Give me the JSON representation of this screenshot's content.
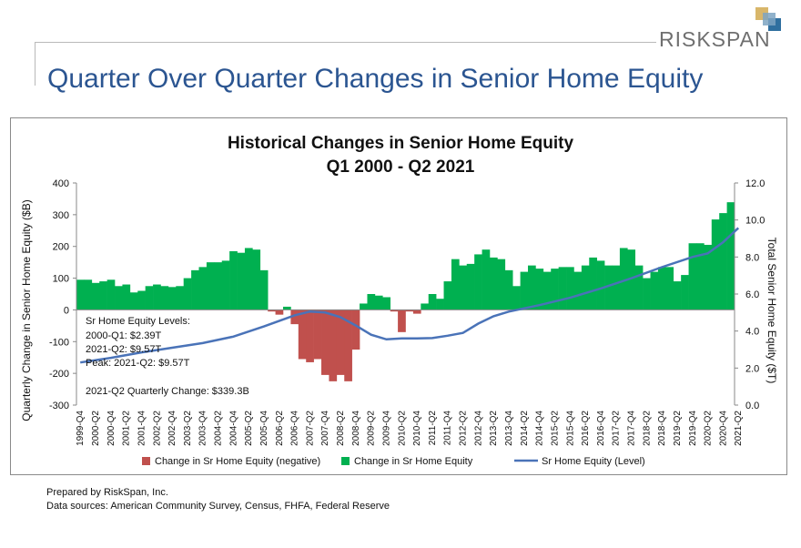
{
  "header": {
    "brand": "RISKSPAN",
    "page_title": "Quarter Over Quarter Changes in Senior Home Equity",
    "logo_colors": [
      "#d8b66a",
      "#2f6f9f",
      "#7ea4c2"
    ]
  },
  "chart_data": {
    "type": "bar+line",
    "title": "Historical Changes in Senior Home Equity",
    "subtitle": "Q1 2000 - Q2 2021",
    "ylabel": "Quarterly Change in Senior Home Equity ($B)",
    "y2label": "Total Senior Home Equity ($T)",
    "ylim": [
      -300,
      400
    ],
    "y2lim": [
      0,
      12
    ],
    "yticks": [
      "-300",
      "-200",
      "-100",
      "0",
      "100",
      "200",
      "300",
      "400"
    ],
    "y2ticks": [
      "0.0",
      "2.0",
      "4.0",
      "6.0",
      "8.0",
      "10.0",
      "12.0"
    ],
    "grid": false,
    "legend_position": "bottom",
    "x_tick_labels": [
      "1999-Q4",
      "2000-Q2",
      "2000-Q4",
      "2001-Q2",
      "2001-Q4",
      "2002-Q2",
      "2002-Q4",
      "2003-Q2",
      "2003-Q4",
      "2004-Q2",
      "2004-Q4",
      "2005-Q2",
      "2005-Q4",
      "2006-Q2",
      "2006-Q4",
      "2007-Q2",
      "2007-Q4",
      "2008-Q2",
      "2008-Q4",
      "2009-Q2",
      "2009-Q4",
      "2010-Q2",
      "2010-Q4",
      "2011-Q2",
      "2011-Q4",
      "2012-Q2",
      "2012-Q4",
      "2013-Q2",
      "2013-Q4",
      "2014-Q2",
      "2014-Q4",
      "2015-Q2",
      "2015-Q4",
      "2016-Q2",
      "2016-Q4",
      "2017-Q2",
      "2017-Q4",
      "2018-Q2",
      "2018-Q4",
      "2019-Q2",
      "2019-Q4",
      "2020-Q2",
      "2020-Q4",
      "2021-Q2"
    ],
    "quarterly_change": [
      95,
      95,
      85,
      90,
      95,
      75,
      80,
      55,
      60,
      75,
      80,
      75,
      72,
      75,
      100,
      125,
      135,
      150,
      150,
      155,
      185,
      180,
      195,
      190,
      125,
      -5,
      -15,
      10,
      -45,
      -155,
      -165,
      -155,
      -205,
      -225,
      -205,
      -225,
      -125,
      20,
      50,
      45,
      40,
      -5,
      -70,
      -5,
      -12,
      20,
      50,
      35,
      90,
      160,
      140,
      145,
      175,
      190,
      165,
      160,
      125,
      75,
      120,
      140,
      130,
      120,
      130,
      135,
      135,
      120,
      140,
      165,
      155,
      140,
      140,
      195,
      190,
      140,
      100,
      120,
      135,
      135,
      90,
      110,
      210,
      210,
      205,
      285,
      305,
      339.3
    ],
    "level_series": {
      "name": "Sr Home Equity (Level)",
      "color": "#4a73b8",
      "points_by_quarter_index": [
        [
          0,
          2.3
        ],
        [
          4,
          2.55
        ],
        [
          8,
          2.85
        ],
        [
          12,
          3.1
        ],
        [
          16,
          3.35
        ],
        [
          20,
          3.7
        ],
        [
          24,
          4.25
        ],
        [
          28,
          4.85
        ],
        [
          30,
          5.05
        ],
        [
          32,
          5.0
        ],
        [
          34,
          4.75
        ],
        [
          36,
          4.3
        ],
        [
          38,
          3.8
        ],
        [
          40,
          3.55
        ],
        [
          42,
          3.6
        ],
        [
          44,
          3.6
        ],
        [
          46,
          3.62
        ],
        [
          48,
          3.75
        ],
        [
          50,
          3.9
        ],
        [
          52,
          4.4
        ],
        [
          54,
          4.8
        ],
        [
          56,
          5.05
        ],
        [
          60,
          5.4
        ],
        [
          64,
          5.8
        ],
        [
          68,
          6.3
        ],
        [
          72,
          6.85
        ],
        [
          76,
          7.45
        ],
        [
          80,
          8.0
        ],
        [
          82,
          8.2
        ],
        [
          84,
          8.8
        ],
        [
          86,
          9.57
        ]
      ]
    },
    "legend": [
      {
        "label": "Change in Sr Home Equity (negative)",
        "color": "#c0504d",
        "kind": "bar"
      },
      {
        "label": "Change in Sr Home Equity",
        "color": "#00b050",
        "kind": "bar"
      },
      {
        "label": "Sr Home Equity (Level)",
        "color": "#4a73b8",
        "kind": "line"
      }
    ],
    "annotations": [
      "Sr Home Equity Levels:",
      "2000-Q1: $2.39T",
      "2021-Q2: $9.57T",
      "Peak: 2021-Q2: $9.57T",
      "2021-Q2 Quarterly Change: $339.3B"
    ]
  },
  "footer": {
    "prepared_by": "Prepared by RiskSpan, Inc.",
    "sources": "Data sources: American Community Survey, Census, FHFA, Federal Reserve"
  }
}
